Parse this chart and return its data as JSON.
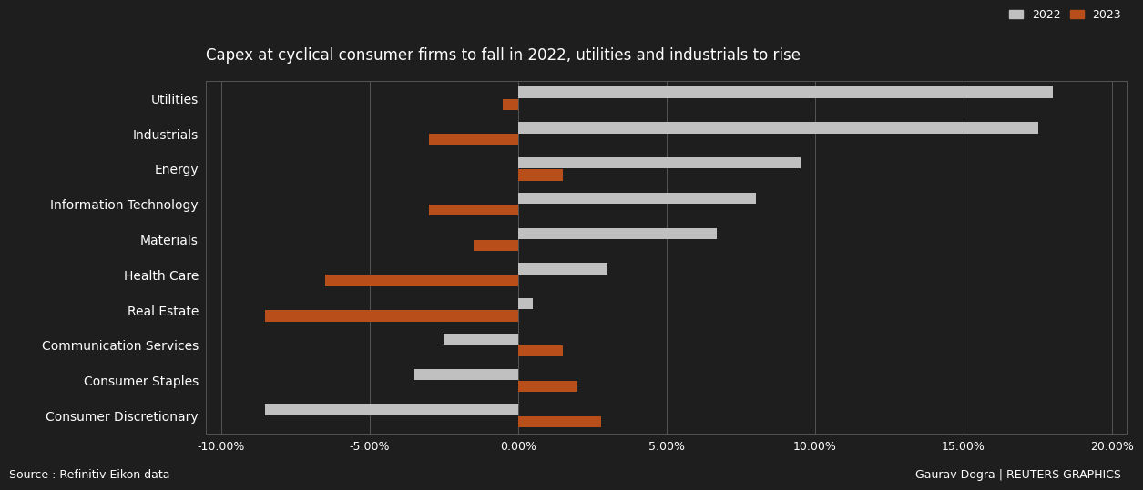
{
  "title": "Capex at cyclical consumer firms to fall in 2022, utilities and industrials to rise",
  "categories": [
    "Utilities",
    "Industrials",
    "Energy",
    "Information Technology",
    "Materials",
    "Health Care",
    "Real Estate",
    "Communication Services",
    "Consumer Staples",
    "Consumer Discretionary"
  ],
  "values_2022": [
    0.18,
    0.175,
    0.095,
    0.08,
    0.067,
    0.03,
    0.005,
    -0.025,
    -0.035,
    -0.085
  ],
  "values_2023": [
    -0.005,
    -0.03,
    0.015,
    -0.03,
    -0.015,
    -0.065,
    -0.085,
    0.015,
    0.02,
    0.028
  ],
  "color_2022": "#c0c0c0",
  "color_2023": "#b84f1a",
  "background_color": "#1e1e1e",
  "text_color": "#ffffff",
  "grid_color": "#555555",
  "xlim": [
    -0.105,
    0.205
  ],
  "xticks": [
    -0.1,
    -0.05,
    0.0,
    0.05,
    0.1,
    0.15,
    0.2
  ],
  "xtick_labels": [
    "-10.00%",
    "-5.00%",
    "0.00%",
    "5.00%",
    "10.00%",
    "15.00%",
    "20.00%"
  ],
  "source_text": "Source : Refinitiv Eikon data",
  "credit_text": "Gaurav Dogra | REUTERS GRAPHICS",
  "legend_2022": "2022",
  "legend_2023": "2023",
  "bar_height": 0.32,
  "bar_gap": 0.02
}
